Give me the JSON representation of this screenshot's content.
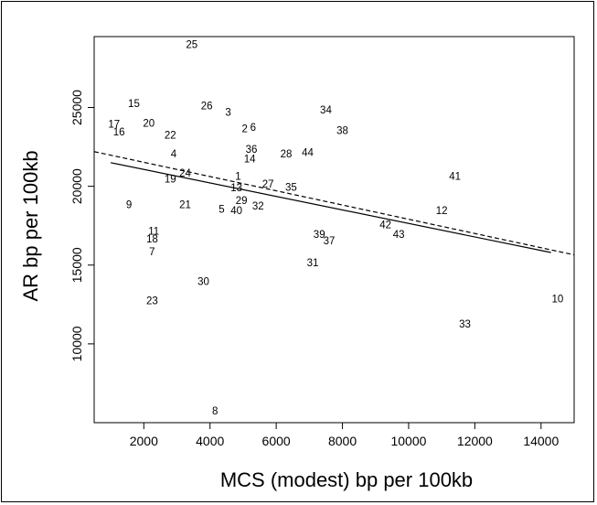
{
  "chart_data": {
    "type": "scatter",
    "title": "",
    "xlabel": "MCS (modest) bp per 100kb",
    "ylabel": "AR bp per 100kb",
    "xlim": [
      500,
      15000
    ],
    "ylim": [
      5000,
      29500
    ],
    "xticks": [
      2000,
      4000,
      6000,
      8000,
      10000,
      12000,
      14000
    ],
    "yticks": [
      10000,
      15000,
      20000,
      25000
    ],
    "grid": false,
    "points": [
      {
        "label": "1",
        "x": 4850,
        "y": 20600
      },
      {
        "label": "2",
        "x": 5050,
        "y": 23600
      },
      {
        "label": "3",
        "x": 4550,
        "y": 24650
      },
      {
        "label": "4",
        "x": 2900,
        "y": 22000
      },
      {
        "label": "5",
        "x": 4350,
        "y": 18500
      },
      {
        "label": "6",
        "x": 5300,
        "y": 23700
      },
      {
        "label": "7",
        "x": 2250,
        "y": 15800
      },
      {
        "label": "8",
        "x": 4150,
        "y": 5700
      },
      {
        "label": "9",
        "x": 1550,
        "y": 18800
      },
      {
        "label": "10",
        "x": 14500,
        "y": 12800
      },
      {
        "label": "11",
        "x": 2300,
        "y": 17100
      },
      {
        "label": "12",
        "x": 11000,
        "y": 18400
      },
      {
        "label": "13",
        "x": 4800,
        "y": 19850
      },
      {
        "label": "14",
        "x": 5200,
        "y": 21700
      },
      {
        "label": "15",
        "x": 1700,
        "y": 25200
      },
      {
        "label": "16",
        "x": 1250,
        "y": 23400
      },
      {
        "label": "17",
        "x": 1100,
        "y": 23900
      },
      {
        "label": "18",
        "x": 2250,
        "y": 16600
      },
      {
        "label": "19",
        "x": 2800,
        "y": 20400
      },
      {
        "label": "20",
        "x": 2150,
        "y": 23950
      },
      {
        "label": "21",
        "x": 3250,
        "y": 18800
      },
      {
        "label": "22",
        "x": 2800,
        "y": 23200
      },
      {
        "label": "23",
        "x": 2250,
        "y": 12700
      },
      {
        "label": "24",
        "x": 3250,
        "y": 20800
      },
      {
        "label": "25",
        "x": 3450,
        "y": 28950
      },
      {
        "label": "26",
        "x": 3900,
        "y": 25050
      },
      {
        "label": "27",
        "x": 5750,
        "y": 20100
      },
      {
        "label": "28",
        "x": 6300,
        "y": 22000
      },
      {
        "label": "29",
        "x": 4950,
        "y": 19050
      },
      {
        "label": "30",
        "x": 3800,
        "y": 13900
      },
      {
        "label": "31",
        "x": 7100,
        "y": 15100
      },
      {
        "label": "32",
        "x": 5450,
        "y": 18700
      },
      {
        "label": "33",
        "x": 11700,
        "y": 11200
      },
      {
        "label": "34",
        "x": 7500,
        "y": 24800
      },
      {
        "label": "35",
        "x": 6450,
        "y": 19900
      },
      {
        "label": "36",
        "x": 5250,
        "y": 22300
      },
      {
        "label": "37",
        "x": 7600,
        "y": 16500
      },
      {
        "label": "38",
        "x": 8000,
        "y": 23500
      },
      {
        "label": "39",
        "x": 7300,
        "y": 16900
      },
      {
        "label": "40",
        "x": 4800,
        "y": 18400
      },
      {
        "label": "41",
        "x": 11400,
        "y": 20600
      },
      {
        "label": "42",
        "x": 9300,
        "y": 17500
      },
      {
        "label": "43",
        "x": 9700,
        "y": 16900
      },
      {
        "label": "44",
        "x": 6950,
        "y": 22100
      }
    ],
    "fit_lines": [
      {
        "style": "solid",
        "x": [
          1000,
          14300
        ],
        "y": [
          21500,
          15800
        ]
      },
      {
        "style": "dashed",
        "x": [
          500,
          15000
        ],
        "y": [
          22200,
          15650
        ]
      }
    ]
  }
}
